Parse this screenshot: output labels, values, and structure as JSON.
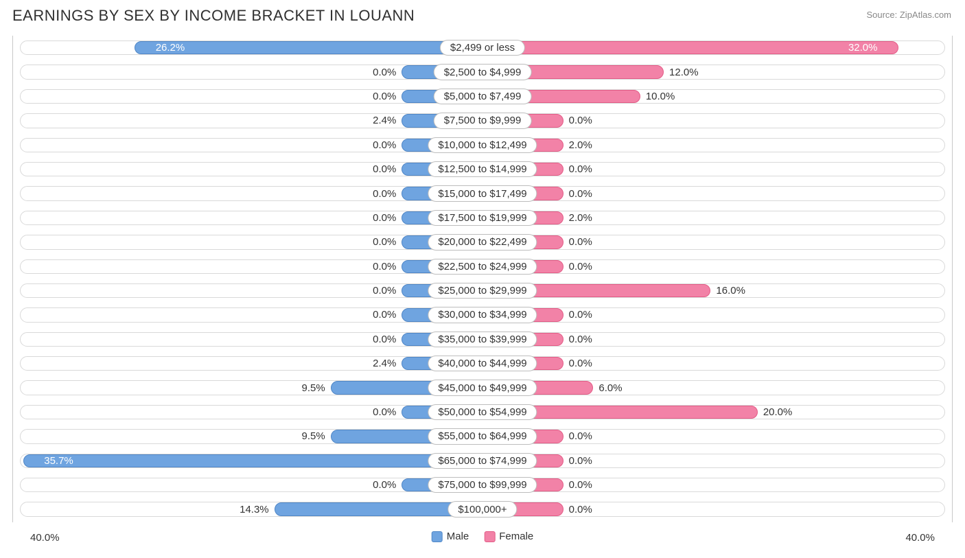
{
  "title": "EARNINGS BY SEX BY INCOME BRACKET IN LOUANN",
  "source": "Source: ZipAtlas.com",
  "chart": {
    "type": "diverging-bar",
    "axis_max": 40.0,
    "axis_label_left": "40.0%",
    "axis_label_right": "40.0%",
    "min_bar_pct": 4.3,
    "center_pill_half_pct": 4.3,
    "colors": {
      "male_fill": "#6fa4e0",
      "male_border": "#4f86c6",
      "female_fill": "#f282a7",
      "female_border": "#e35b86",
      "track_border": "#d9d9d9",
      "text": "#333333",
      "background": "#ffffff"
    },
    "legend": [
      {
        "label": "Male",
        "color": "#6fa4e0",
        "border": "#4f86c6"
      },
      {
        "label": "Female",
        "color": "#f282a7",
        "border": "#e35b86"
      }
    ],
    "rows": [
      {
        "label": "$2,499 or less",
        "male": 26.2,
        "female": 32.0,
        "male_str": "26.2%",
        "female_str": "32.0%",
        "male_inside": true,
        "female_inside": true
      },
      {
        "label": "$2,500 to $4,999",
        "male": 0.0,
        "female": 12.0,
        "male_str": "0.0%",
        "female_str": "12.0%",
        "male_inside": false,
        "female_inside": false
      },
      {
        "label": "$5,000 to $7,499",
        "male": 0.0,
        "female": 10.0,
        "male_str": "0.0%",
        "female_str": "10.0%",
        "male_inside": false,
        "female_inside": false
      },
      {
        "label": "$7,500 to $9,999",
        "male": 2.4,
        "female": 0.0,
        "male_str": "2.4%",
        "female_str": "0.0%",
        "male_inside": false,
        "female_inside": false
      },
      {
        "label": "$10,000 to $12,499",
        "male": 0.0,
        "female": 2.0,
        "male_str": "0.0%",
        "female_str": "2.0%",
        "male_inside": false,
        "female_inside": false
      },
      {
        "label": "$12,500 to $14,999",
        "male": 0.0,
        "female": 0.0,
        "male_str": "0.0%",
        "female_str": "0.0%",
        "male_inside": false,
        "female_inside": false
      },
      {
        "label": "$15,000 to $17,499",
        "male": 0.0,
        "female": 0.0,
        "male_str": "0.0%",
        "female_str": "0.0%",
        "male_inside": false,
        "female_inside": false
      },
      {
        "label": "$17,500 to $19,999",
        "male": 0.0,
        "female": 2.0,
        "male_str": "0.0%",
        "female_str": "2.0%",
        "male_inside": false,
        "female_inside": false
      },
      {
        "label": "$20,000 to $22,499",
        "male": 0.0,
        "female": 0.0,
        "male_str": "0.0%",
        "female_str": "0.0%",
        "male_inside": false,
        "female_inside": false
      },
      {
        "label": "$22,500 to $24,999",
        "male": 0.0,
        "female": 0.0,
        "male_str": "0.0%",
        "female_str": "0.0%",
        "male_inside": false,
        "female_inside": false
      },
      {
        "label": "$25,000 to $29,999",
        "male": 0.0,
        "female": 16.0,
        "male_str": "0.0%",
        "female_str": "16.0%",
        "male_inside": false,
        "female_inside": false
      },
      {
        "label": "$30,000 to $34,999",
        "male": 0.0,
        "female": 0.0,
        "male_str": "0.0%",
        "female_str": "0.0%",
        "male_inside": false,
        "female_inside": false
      },
      {
        "label": "$35,000 to $39,999",
        "male": 0.0,
        "female": 0.0,
        "male_str": "0.0%",
        "female_str": "0.0%",
        "male_inside": false,
        "female_inside": false
      },
      {
        "label": "$40,000 to $44,999",
        "male": 2.4,
        "female": 0.0,
        "male_str": "2.4%",
        "female_str": "0.0%",
        "male_inside": false,
        "female_inside": false
      },
      {
        "label": "$45,000 to $49,999",
        "male": 9.5,
        "female": 6.0,
        "male_str": "9.5%",
        "female_str": "6.0%",
        "male_inside": false,
        "female_inside": false
      },
      {
        "label": "$50,000 to $54,999",
        "male": 0.0,
        "female": 20.0,
        "male_str": "0.0%",
        "female_str": "20.0%",
        "male_inside": false,
        "female_inside": false
      },
      {
        "label": "$55,000 to $64,999",
        "male": 9.5,
        "female": 0.0,
        "male_str": "9.5%",
        "female_str": "0.0%",
        "male_inside": false,
        "female_inside": false
      },
      {
        "label": "$65,000 to $74,999",
        "male": 35.7,
        "female": 0.0,
        "male_str": "35.7%",
        "female_str": "0.0%",
        "male_inside": true,
        "female_inside": false
      },
      {
        "label": "$75,000 to $99,999",
        "male": 0.0,
        "female": 0.0,
        "male_str": "0.0%",
        "female_str": "0.0%",
        "male_inside": false,
        "female_inside": false
      },
      {
        "label": "$100,000+",
        "male": 14.3,
        "female": 0.0,
        "male_str": "14.3%",
        "female_str": "0.0%",
        "male_inside": false,
        "female_inside": false
      }
    ]
  }
}
